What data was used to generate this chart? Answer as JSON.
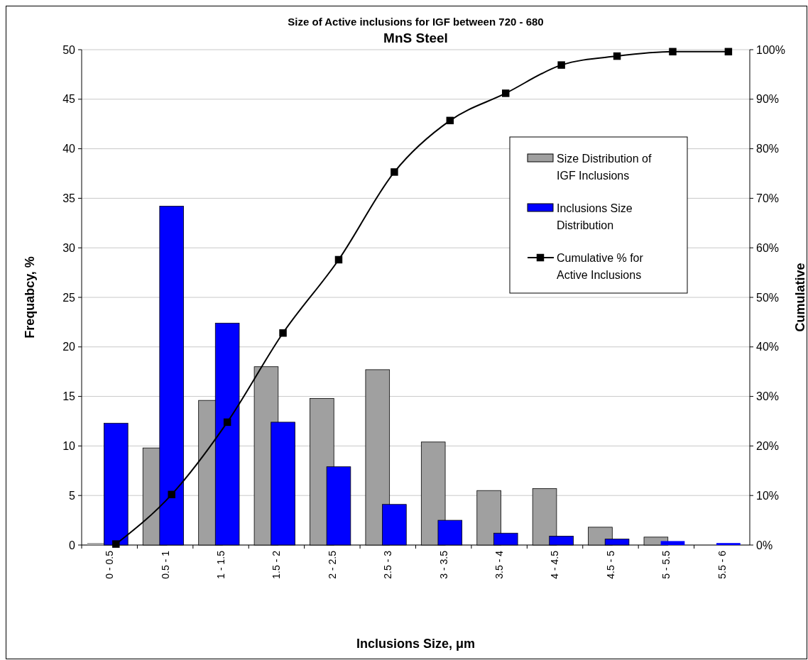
{
  "chart_data": {
    "type": "bar",
    "title": "Size of Active inclusions for IGF between 720 - 680",
    "subtitle": "MnS Steel",
    "xlabel": "Inclusions Size, μm",
    "ylabel": "Frequabcy, %",
    "y2label": "Cumulative",
    "categories": [
      "0 - 0.5",
      "0.5 - 1",
      "1 - 1.5",
      "1.5 - 2",
      "2 - 2.5",
      "2.5 - 3",
      "3 - 3.5",
      "3.5 - 4",
      "4 - 4.5",
      "4.5 - 5",
      "5 - 5.5",
      "5.5 - 6"
    ],
    "series": [
      {
        "name": "Size Distribution of IGF Inclusions",
        "color": "#a0a0a0",
        "values": [
          0.2,
          9.8,
          14.6,
          18,
          14.8,
          17.7,
          10.4,
          5.5,
          5.7,
          1.8,
          0.8,
          0
        ]
      },
      {
        "name": "Inclusions Size Distribution",
        "color": "#0000ff",
        "values": [
          12.3,
          34.2,
          22.4,
          12.4,
          7.9,
          4.1,
          2.5,
          1.2,
          0.9,
          0.6,
          0.4,
          0.2
        ]
      },
      {
        "name": "Cumulative % for Active Inclusions",
        "type": "line",
        "axis": "y2",
        "color": "#000000",
        "marker": "square",
        "values": [
          0.2,
          10.2,
          24.8,
          42.8,
          57.6,
          75.3,
          85.7,
          91.2,
          96.9,
          98.7,
          99.6,
          99.6
        ]
      }
    ],
    "ylim": [
      0,
      50
    ],
    "yticks": [
      0,
      5,
      10,
      15,
      20,
      25,
      30,
      35,
      40,
      45,
      50
    ],
    "y2lim": [
      0,
      100
    ],
    "y2ticks": [
      {
        "value": 0,
        "label": "0%"
      },
      {
        "value": 10,
        "label": "10%"
      },
      {
        "value": 20,
        "label": "20%"
      },
      {
        "value": 30,
        "label": "30%"
      },
      {
        "value": 40,
        "label": "40%"
      },
      {
        "value": 50,
        "label": "50%"
      },
      {
        "value": 60,
        "label": "60%"
      },
      {
        "value": 70,
        "label": "70%"
      },
      {
        "value": 80,
        "label": "80%"
      },
      {
        "value": 90,
        "label": "90%"
      },
      {
        "value": 100,
        "label": "100%"
      }
    ],
    "grid": "y",
    "legend": "right"
  }
}
